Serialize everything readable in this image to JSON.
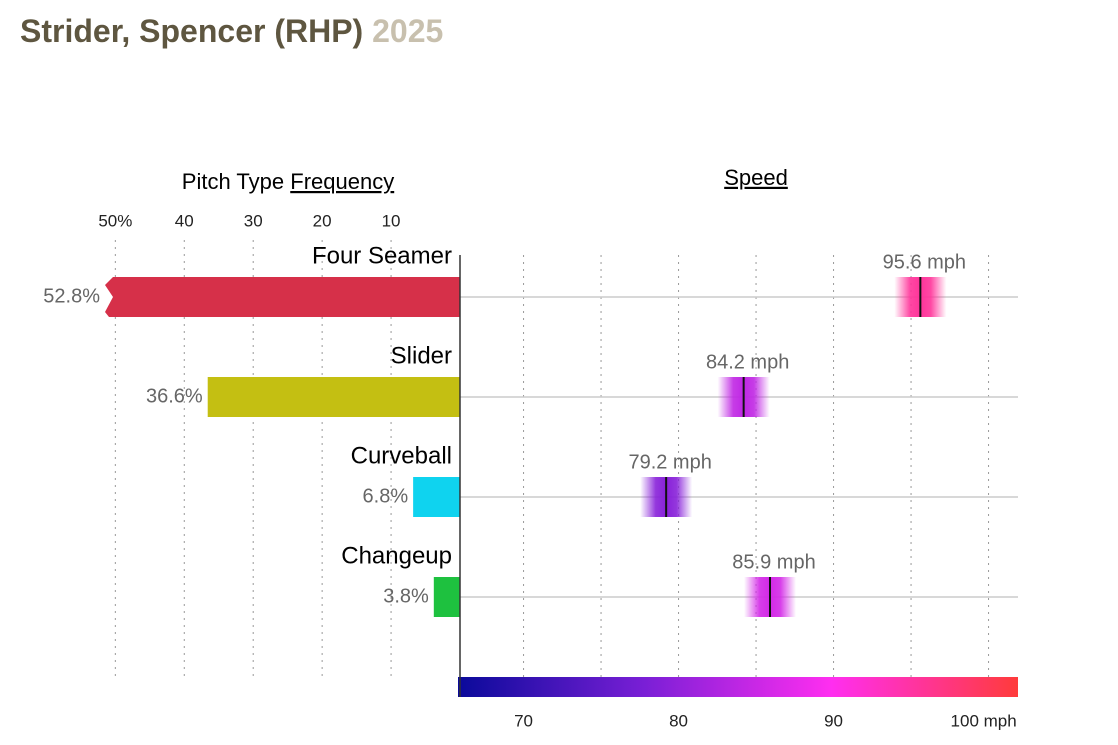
{
  "header": {
    "title": "Strider, Spencer (RHP)",
    "season": "2025"
  },
  "chart_data": [
    {
      "type": "bar",
      "title": "Pitch Type",
      "title_link": "Frequency",
      "categories": [
        "Four Seamer",
        "Slider",
        "Curveball",
        "Changeup"
      ],
      "values": [
        52.8,
        36.6,
        6.8,
        3.8
      ],
      "value_labels": [
        "52.8%",
        "36.6%",
        "6.8%",
        "3.8%"
      ],
      "colors": [
        "#d63049",
        "#c4bf12",
        "#0fd3ef",
        "#1ec13f"
      ],
      "xlim": [
        0,
        51.5
      ],
      "xticks": [
        {
          "value": 50,
          "label": "50%"
        },
        40,
        30,
        20,
        10
      ],
      "grid": true
    },
    {
      "type": "strip",
      "title_link": "Speed",
      "categories": [
        "Four Seamer",
        "Slider",
        "Curveball",
        "Changeup"
      ],
      "values": [
        95.6,
        84.2,
        79.2,
        85.9
      ],
      "value_labels": [
        "95.6 mph",
        "84.2 mph",
        "79.2 mph",
        "85.9 mph"
      ],
      "xlim": [
        65.9,
        101.9
      ],
      "xticks": [
        70,
        80,
        90,
        {
          "value": 100,
          "label": "100 mph"
        }
      ],
      "minor_xticks": [
        75,
        85,
        95
      ],
      "colorscale": [
        "#0a0a9a",
        "#7a1fd6",
        "#ff2ef0",
        "#ff3b3b"
      ],
      "grid": true
    }
  ]
}
